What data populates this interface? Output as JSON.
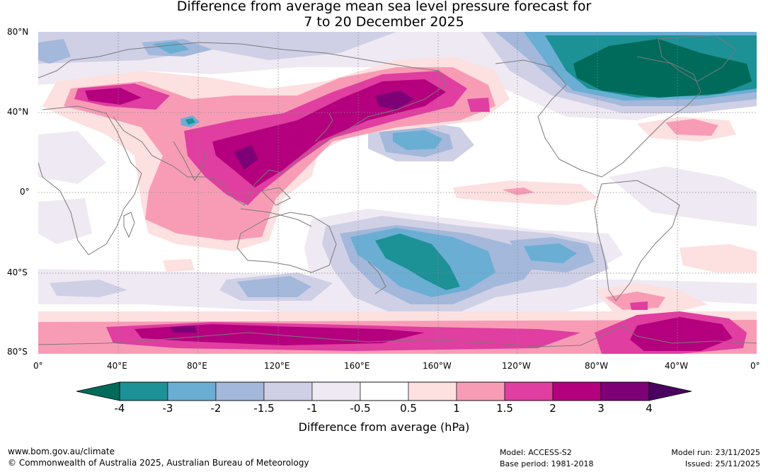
{
  "title": {
    "line1": "Difference from average mean sea level pressure forecast for",
    "line2": "7 to 20 December 2025"
  },
  "map": {
    "lat_labels": [
      "80°N",
      "40°N",
      "0°",
      "40°S",
      "80°S"
    ],
    "lon_labels": [
      "0°",
      "40°E",
      "80°E",
      "120°E",
      "160°E",
      "160°W",
      "120°W",
      "80°W",
      "40°W",
      "0°"
    ]
  },
  "colorbar": {
    "title": "Difference from average (hPa)",
    "tick_labels": [
      "-4",
      "-3",
      "-2",
      "-1.5",
      "-1",
      "-0.5",
      "0.5",
      "1",
      "1.5",
      "2",
      "3",
      "4"
    ],
    "colors": {
      "below": "#006b5b",
      "bins": [
        "#1c9196",
        "#6aaed4",
        "#a3b8da",
        "#cfd0e6",
        "#efe9f3",
        "#ffffff",
        "#fde0e0",
        "#f89cb6",
        "#e03ea0",
        "#b4007e",
        "#7e0077"
      ],
      "above": "#4a0060"
    }
  },
  "footer": {
    "website": "www.bom.gov.au/climate",
    "copyright": "© Commonwealth of Australia 2025, Australian Bureau of Meteorology",
    "model": "Model: ACCESS-S2",
    "base_period": "Base period: 1981-2018",
    "model_run": "Model run: 23/11/2025",
    "issued": "Issued: 25/11/2025"
  }
}
